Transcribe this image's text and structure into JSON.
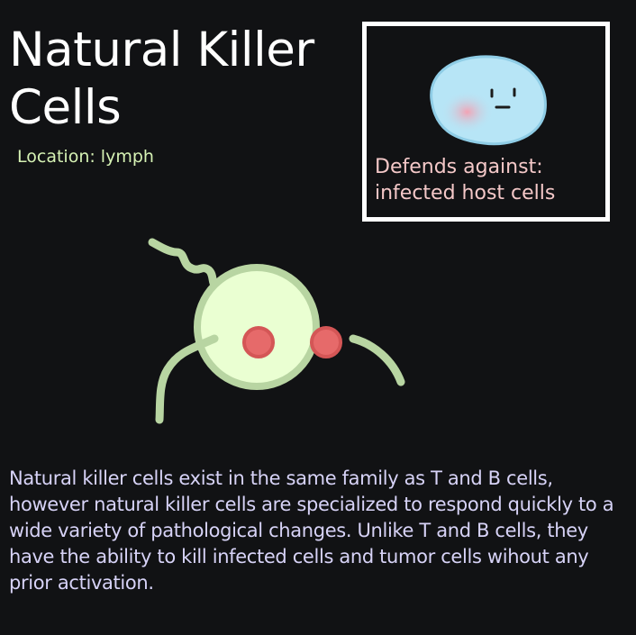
{
  "title": {
    "line1": "Natural Killer",
    "line2": "Cells"
  },
  "location": "Location: lymph",
  "defends": {
    "line1": "Defends against:",
    "line2": "infected host cells"
  },
  "description": "Natural killer cells exist in the same family as T and B cells, however natural killer cells are specialized to respond quickly to a wide variety of pathological changes. Unlike T and B cells, they have the ability to kill infected cells and tumor cells wihout any prior activation.",
  "colors": {
    "background": "#111214",
    "title_text": "#ffffff",
    "location_text": "#d6f2b4",
    "defends_text": "#f4c8c8",
    "description_text": "#d7d3f7",
    "nk_cell_fill": "#eaffd2",
    "nk_cell_outline": "#b8d5a2",
    "nk_cell_granules": "#e66a6a",
    "pathogen_fill": "#b7e5f6",
    "pathogen_blush": "#f3a3b4"
  },
  "icons": {
    "pathogen": "infected-cell-icon",
    "nk_cell": "natural-killer-cell-icon"
  }
}
